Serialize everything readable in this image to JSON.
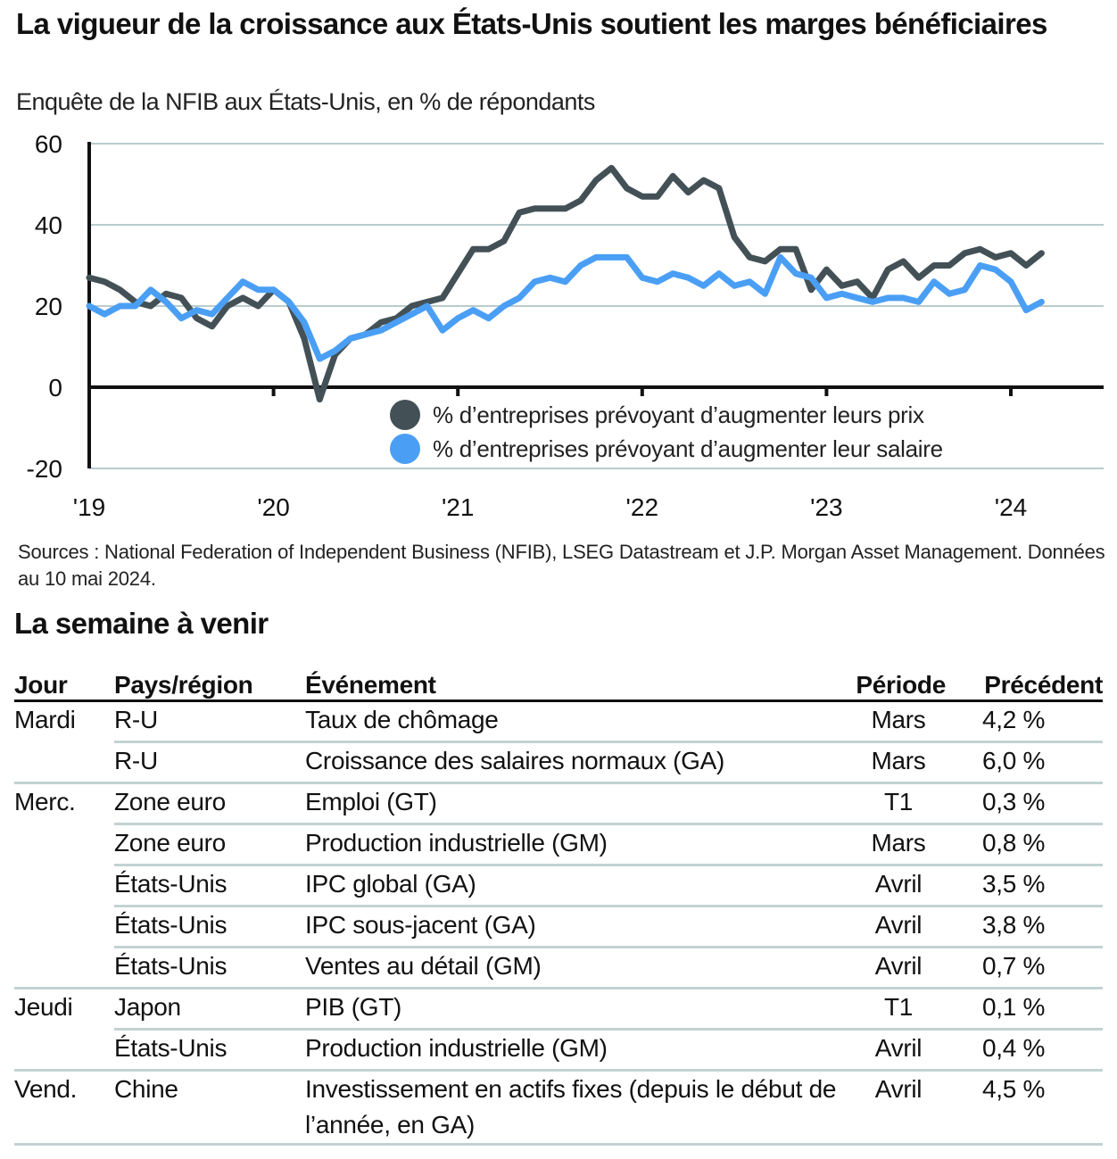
{
  "header": {
    "title": "La vigueur de la croissance aux États-Unis soutient les marges bénéficiaires",
    "subtitle": "Enquête de la NFIB aux États-Unis, en % de répondants"
  },
  "chart_data": {
    "type": "line",
    "title": "La vigueur de la croissance aux États-Unis soutient les marges bénéficiaires",
    "subtitle": "Enquête de la NFIB aux États-Unis, en % de répondants",
    "xlabel": "",
    "ylabel": "",
    "ylim": [
      -20,
      60
    ],
    "yticks": [
      -20,
      0,
      20,
      40,
      60
    ],
    "ytick_labels": [
      "-20",
      "0",
      "20",
      "40",
      "60"
    ],
    "x_start": "2019-01",
    "x_frequency": "monthly",
    "xticks": [
      "2019-01",
      "2020-01",
      "2021-01",
      "2022-01",
      "2023-01",
      "2024-01"
    ],
    "xtick_labels": [
      "'19",
      "'20",
      "'21",
      "'22",
      "'23",
      "'24"
    ],
    "grid": true,
    "legend_position": "bottom-right (inside plot)",
    "series": [
      {
        "name": "% d’entreprises prévoyant d’augmenter leurs prix",
        "color": "#435157",
        "values": [
          27,
          26,
          24,
          21,
          20,
          23,
          22,
          17,
          15,
          20,
          22,
          20,
          24,
          21,
          12,
          -3,
          8,
          12,
          13,
          16,
          17,
          20,
          21,
          22,
          28,
          34,
          34,
          36,
          43,
          44,
          44,
          44,
          46,
          51,
          54,
          49,
          47,
          47,
          52,
          48,
          51,
          49,
          37,
          32,
          31,
          34,
          34,
          24,
          29,
          25,
          26,
          22,
          29,
          31,
          27,
          30,
          30,
          33,
          34,
          32,
          33,
          30,
          33
        ]
      },
      {
        "name": "% d’entreprises prévoyant d’augmenter leur salaire",
        "color": "#4a9ff5",
        "values": [
          20,
          18,
          20,
          20,
          24,
          21,
          17,
          19,
          18,
          22,
          26,
          24,
          24,
          21,
          16,
          7,
          9,
          12,
          13,
          14,
          16,
          18,
          20,
          14,
          17,
          19,
          17,
          20,
          22,
          26,
          27,
          26,
          30,
          32,
          32,
          32,
          27,
          26,
          28,
          27,
          25,
          28,
          25,
          26,
          23,
          32,
          28,
          27,
          22,
          23,
          22,
          21,
          22,
          22,
          21,
          26,
          23,
          24,
          30,
          29,
          26,
          19,
          21
        ]
      }
    ]
  },
  "sources": "Sources : National Federation of Independent Business (NFIB), LSEG Datastream et J.P. Morgan Asset Management. Données au 10 mai 2024.",
  "calendar": {
    "title": "La semaine à venir",
    "headers": {
      "day": "Jour",
      "country": "Pays/région",
      "event": "Événement",
      "period": "Période",
      "previous": "Précédent"
    },
    "rows": [
      {
        "day": "Mardi",
        "country": "R-U",
        "event": "Taux de chômage",
        "period": "Mars",
        "previous": "4,2 %"
      },
      {
        "day": "",
        "country": "R-U",
        "event": "Croissance des salaires normaux (GA)",
        "period": "Mars",
        "previous": "6,0 %"
      },
      {
        "day": "Merc.",
        "country": "Zone euro",
        "event": "Emploi (GT)",
        "period": "T1",
        "previous": "0,3 %"
      },
      {
        "day": "",
        "country": "Zone euro",
        "event": "Production industrielle (GM)",
        "period": "Mars",
        "previous": "0,8 %"
      },
      {
        "day": "",
        "country": "États-Unis",
        "event": "IPC global (GA)",
        "period": "Avril",
        "previous": "3,5 %"
      },
      {
        "day": "",
        "country": "États-Unis",
        "event": "IPC sous-jacent (GA)",
        "period": "Avril",
        "previous": "3,8 %"
      },
      {
        "day": "",
        "country": "États-Unis",
        "event": "Ventes au détail (GM)",
        "period": "Avril",
        "previous": "0,7 %"
      },
      {
        "day": "Jeudi",
        "country": "Japon",
        "event": "PIB (GT)",
        "period": "T1",
        "previous": "0,1 %"
      },
      {
        "day": "",
        "country": "États-Unis",
        "event": "Production industrielle (GM)",
        "period": "Avril",
        "previous": "0,4 %"
      },
      {
        "day": "Vend.",
        "country": "Chine",
        "event": "Investissement en actifs fixes (depuis le début de l’année, en GA)",
        "period": "Avril",
        "previous": "4,5 %"
      }
    ]
  }
}
